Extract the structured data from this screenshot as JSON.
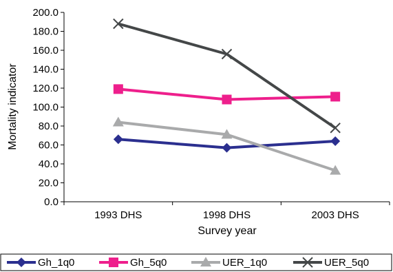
{
  "chart_data": {
    "type": "line",
    "title": "",
    "xlabel": "Survey year",
    "ylabel": "Mortality indicator",
    "categories": [
      "1993 DHS",
      "1998 DHS",
      "2003 DHS"
    ],
    "ylim": [
      0,
      200
    ],
    "ytick_step": 20,
    "ytick_labels": [
      "0.0",
      "20.0",
      "40.0",
      "60.0",
      "80.0",
      "100.0",
      "120.0",
      "140.0",
      "160.0",
      "180.0",
      "200.0"
    ],
    "grid": false,
    "legend_position": "bottom",
    "series": [
      {
        "name": "Gh_1q0",
        "values": [
          66,
          57,
          64
        ],
        "color": "#2b2f8f",
        "marker": "diamond"
      },
      {
        "name": "Gh_5q0",
        "values": [
          119,
          108,
          111
        ],
        "color": "#ee1f8c",
        "marker": "square"
      },
      {
        "name": "UER_1q0",
        "values": [
          84,
          71,
          33
        ],
        "color": "#a9aaab",
        "marker": "triangle"
      },
      {
        "name": "UER_5q0",
        "values": [
          188,
          156,
          78
        ],
        "color": "#444748",
        "marker": "x"
      }
    ]
  }
}
